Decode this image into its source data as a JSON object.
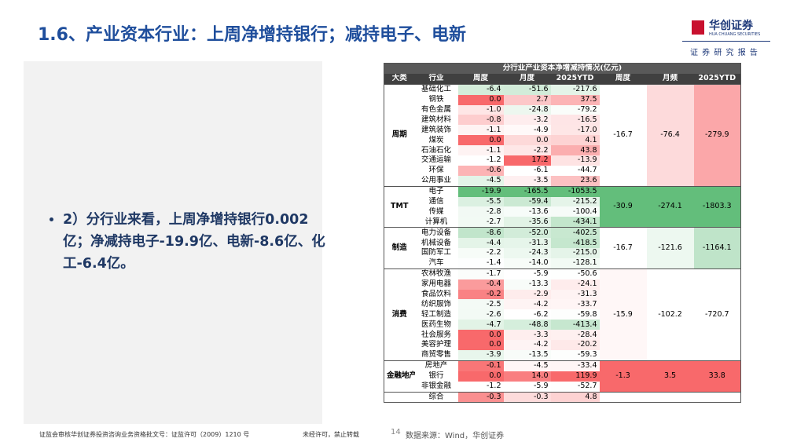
{
  "header": {
    "title": "1.6、产业资本行业：上周净增持银行；减持电子、电新",
    "logo_name": "华创证券",
    "logo_en": "HUA CHUANG SECURITIES",
    "tag": "证 券 研 究 报 告"
  },
  "bullet": "2）分行业来看，上周净增持银行0.002亿；净减持电子-19.9亿、电新-8.6亿、化工-6.4亿。",
  "table": {
    "title": "分行业产业资本净增减持情况(亿元)",
    "headers": [
      "大类",
      "行业",
      "周度",
      "月度",
      "2025YTD",
      "周度",
      "月频",
      "2025YTD"
    ],
    "groups": [
      {
        "name": "周期",
        "rows": [
          [
            "基础化工",
            "-6.4",
            "-51.6",
            "-217.6"
          ],
          [
            "钢铁",
            "0.0",
            "2.7",
            "37.5"
          ],
          [
            "有色金属",
            "-1.0",
            "-24.8",
            "-79.2"
          ],
          [
            "建筑材料",
            "-0.8",
            "-3.2",
            "-16.5"
          ],
          [
            "建筑装饰",
            "-1.1",
            "-4.9",
            "-17.0"
          ],
          [
            "煤炭",
            "0.0",
            "0.0",
            "4.1"
          ],
          [
            "石油石化",
            "-1.1",
            "-2.2",
            "43.8"
          ],
          [
            "交通运输",
            "-1.2",
            "17.2",
            "-13.9"
          ],
          [
            "环保",
            "-0.6",
            "-6.1",
            "-44.7"
          ],
          [
            "公用事业",
            "-4.5",
            "-3.5",
            "23.6"
          ]
        ],
        "summary": [
          "-16.7",
          "-76.4",
          "-279.9"
        ]
      },
      {
        "name": "TMT",
        "rows": [
          [
            "电子",
            "-19.9",
            "-165.5",
            "-1053.5"
          ],
          [
            "通信",
            "-5.5",
            "-59.4",
            "-215.2"
          ],
          [
            "传媒",
            "-2.8",
            "-13.6",
            "-100.4"
          ],
          [
            "计算机",
            "-2.7",
            "-35.6",
            "-434.1"
          ]
        ],
        "summary": [
          "-30.9",
          "-274.1",
          "-1803.3"
        ]
      },
      {
        "name": "制造",
        "rows": [
          [
            "电力设备",
            "-8.6",
            "-52.0",
            "-402.5"
          ],
          [
            "机械设备",
            "-4.4",
            "-31.3",
            "-418.5"
          ],
          [
            "国防军工",
            "-2.2",
            "-24.3",
            "-215.0"
          ],
          [
            "汽车",
            "-1.4",
            "-14.0",
            "-128.1"
          ]
        ],
        "summary": [
          "-16.7",
          "-121.6",
          "-1164.1"
        ]
      },
      {
        "name": "消费",
        "rows": [
          [
            "农林牧渔",
            "-1.7",
            "-5.9",
            "-50.6"
          ],
          [
            "家用电器",
            "-0.4",
            "-13.3",
            "-24.1"
          ],
          [
            "食品饮料",
            "-0.2",
            "-2.9",
            "-31.3"
          ],
          [
            "纺织服饰",
            "-2.5",
            "-4.2",
            "-33.7"
          ],
          [
            "轻工制造",
            "-2.6",
            "-6.2",
            "-59.8"
          ],
          [
            "医药生物",
            "-4.7",
            "-48.8",
            "-413.4"
          ],
          [
            "社会服务",
            "0.0",
            "-3.3",
            "-28.4"
          ],
          [
            "美容护理",
            "0.0",
            "-4.2",
            "-20.2"
          ],
          [
            "商贸零售",
            "-3.9",
            "-13.5",
            "-59.3"
          ]
        ],
        "summary": [
          "-15.9",
          "-102.2",
          "-720.7"
        ]
      },
      {
        "name": "金融地产",
        "rows": [
          [
            "房地产",
            "-0.1",
            "-4.5",
            "-33.4"
          ],
          [
            "银行",
            "0.0",
            "14.0",
            "119.9"
          ],
          [
            "非银金融",
            "-1.2",
            "-5.9",
            "-52.7"
          ]
        ],
        "summary": [
          "-1.3",
          "3.5",
          "33.8"
        ]
      },
      {
        "rows": [
          [
            "综合",
            "-0.3",
            "-0.3",
            "4.8"
          ]
        ]
      }
    ]
  },
  "footer": {
    "license": "证监会审核华创证券投资咨询业务资格批文号：证监许可（2009）1210 号",
    "notice": "未经许可，禁止转载",
    "page": "14",
    "source": "数据来源：Wind，华创证券"
  }
}
